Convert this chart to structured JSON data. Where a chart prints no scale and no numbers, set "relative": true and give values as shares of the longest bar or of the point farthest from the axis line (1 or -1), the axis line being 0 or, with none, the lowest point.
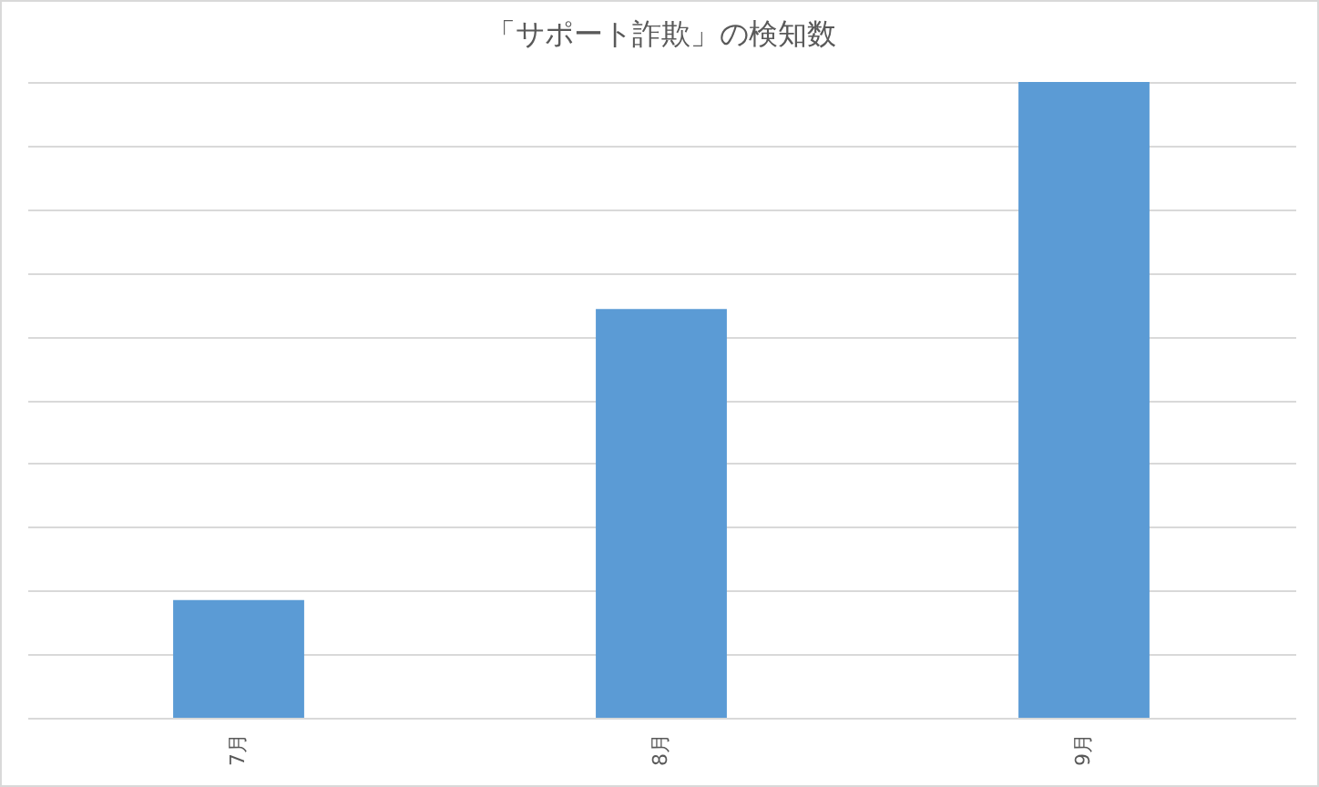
{
  "chart_data": {
    "type": "bar",
    "title": "「サポート詐欺」の検知数",
    "categories": [
      "7月",
      "8月",
      "9月"
    ],
    "values": [
      0.185,
      0.643,
      1
    ],
    "color": "#5b9bd5",
    "relative": true,
    "grid": "y"
  }
}
